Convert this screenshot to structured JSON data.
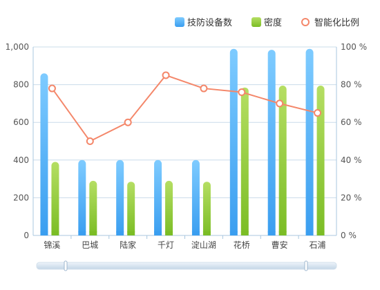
{
  "chart_data": {
    "type": "bar",
    "categories": [
      "锦溪",
      "巴城",
      "陆家",
      "千灯",
      "淀山湖",
      "花桥",
      "曹安",
      "石浦"
    ],
    "series": [
      {
        "name": "技防设备数",
        "kind": "bar",
        "axis": "left",
        "values": [
          860,
          400,
          400,
          400,
          400,
          990,
          985,
          990
        ]
      },
      {
        "name": "密度",
        "kind": "bar",
        "axis": "left",
        "values": [
          390,
          290,
          285,
          290,
          285,
          785,
          795,
          795
        ]
      },
      {
        "name": "智能化比例",
        "kind": "line",
        "axis": "right",
        "values": [
          78,
          50,
          60,
          85,
          78,
          76,
          70,
          65
        ]
      }
    ],
    "y_left": {
      "min": 0,
      "max": 1000,
      "ticks": [
        0,
        200,
        400,
        600,
        800,
        1000
      ],
      "tick_labels": [
        "0",
        "200",
        "400",
        "600",
        "800",
        "1,000"
      ]
    },
    "y_right": {
      "min": 0,
      "max": 100,
      "ticks": [
        0,
        20,
        40,
        60,
        80,
        100
      ],
      "tick_labels": [
        "0 %",
        "20 %",
        "40 %",
        "60 %",
        "80 %",
        "100 %"
      ]
    },
    "legend_position": "top-right",
    "grid": true,
    "data_zoom": {
      "start": 0,
      "end": 100
    },
    "colors": {
      "bar1_top": "#7ecbff",
      "bar1_bottom": "#3a9ef0",
      "bar2_top": "#b5de63",
      "bar2_bottom": "#7bbd25",
      "line": "#f4876a",
      "grid": "#c9dcea",
      "axis": "#a9c7df"
    }
  }
}
